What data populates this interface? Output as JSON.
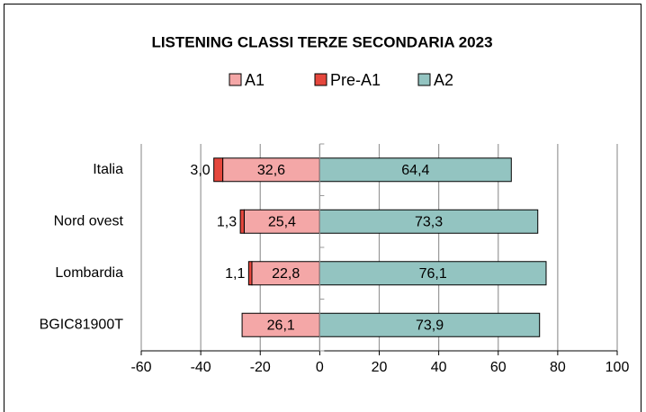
{
  "chart_data": {
    "type": "diverging_bar",
    "title": "LISTENING CLASSI TERZE SECONDARIA 2023",
    "categories": [
      "Italia",
      "Nord ovest",
      "Lombardia",
      "BGIC81900T"
    ],
    "series": [
      {
        "name": "A1",
        "color": "#f4a7a7",
        "values": [
          -32.6,
          -25.4,
          -22.8,
          -26.1
        ],
        "value_labels": [
          "32,6",
          "25,4",
          "22,8",
          "26,1"
        ]
      },
      {
        "name": "Pre-A1",
        "color": "#e5473d",
        "values": [
          -3.0,
          -1.3,
          -1.1,
          null
        ],
        "value_labels": [
          "3,0",
          "1,3",
          "1,1",
          null
        ]
      },
      {
        "name": "A2",
        "color": "#93c4c1",
        "values": [
          64.4,
          73.3,
          76.1,
          73.9
        ],
        "value_labels": [
          "64,4",
          "73,3",
          "76,1",
          "73,9"
        ]
      }
    ],
    "xlim": [
      -60,
      100
    ],
    "xticks": [
      -60,
      -40,
      -20,
      0,
      20,
      40,
      60,
      80,
      100
    ],
    "grid": true
  }
}
